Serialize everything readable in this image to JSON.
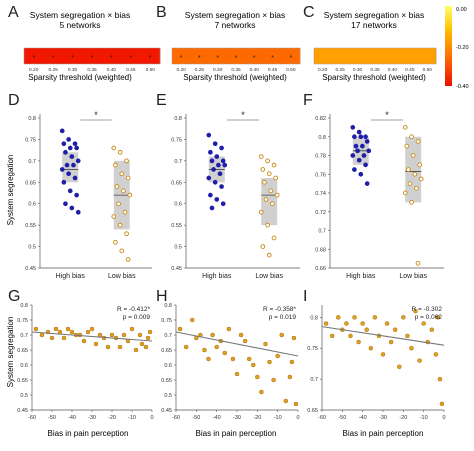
{
  "colorbar": {
    "max_label": "0.00",
    "mid_label": "-0.20",
    "min_label": "-0.40",
    "colors": [
      "#ff1a00",
      "#ff7a00",
      "#ffd200",
      "#ffff66"
    ]
  },
  "chart_data": [
    {
      "panel": "A",
      "type": "heatmap",
      "title": "System segregation × bias",
      "subtitle": "5 networks",
      "xlabel": "Sparsity threshold (weighted)",
      "x": [
        "0.20",
        "0.25",
        "0.30",
        "0.35",
        "0.40",
        "0.45",
        "0.50"
      ],
      "values": [
        -0.38,
        -0.38,
        -0.38,
        -0.38,
        -0.37,
        -0.37,
        -0.37
      ],
      "significant": [
        true,
        true,
        true,
        true,
        true,
        true,
        true
      ],
      "color": "#f21800"
    },
    {
      "panel": "B",
      "type": "heatmap",
      "title": "System segregation × bias",
      "subtitle": "7 networks",
      "xlabel": "Sparsity threshold (weighted)",
      "x": [
        "0.20",
        "0.25",
        "0.30",
        "0.35",
        "0.40",
        "0.45",
        "0.50"
      ],
      "values": [
        -0.32,
        -0.32,
        -0.32,
        -0.32,
        -0.32,
        -0.33,
        -0.34
      ],
      "significant": [
        true,
        true,
        true,
        true,
        true,
        true,
        true
      ],
      "color": "#ff6a00"
    },
    {
      "panel": "C",
      "type": "heatmap",
      "title": "System segregation × bias",
      "subtitle": "17 networks",
      "xlabel": "Sparsity threshold (weighted)",
      "x": [
        "0.20",
        "0.25",
        "0.30",
        "0.35",
        "0.40",
        "0.45",
        "0.50"
      ],
      "values": [
        -0.27,
        -0.27,
        -0.27,
        -0.27,
        -0.27,
        -0.27,
        -0.27
      ],
      "significant": [
        false,
        false,
        false,
        false,
        false,
        false,
        false
      ],
      "color": "#ffa000"
    },
    {
      "panel": "D",
      "type": "scatter",
      "ylabel": "System segregation",
      "categories": [
        "High bias",
        "Low bias"
      ],
      "ylim": [
        0.45,
        0.8
      ],
      "yticks": [
        "0.45",
        "0.5",
        "0.55",
        "0.6",
        "0.65",
        "0.7",
        "0.75",
        "0.8"
      ],
      "significance": "*",
      "box": [
        {
          "q1": 0.65,
          "median": 0.68,
          "q3": 0.72
        },
        {
          "q1": 0.54,
          "median": 0.62,
          "q3": 0.7
        }
      ],
      "series": [
        {
          "values": [
            0.77,
            0.75,
            0.74,
            0.74,
            0.73,
            0.73,
            0.72,
            0.71,
            0.7,
            0.69,
            0.69,
            0.68,
            0.67,
            0.66,
            0.65,
            0.63,
            0.62,
            0.6,
            0.59,
            0.58
          ]
        },
        {
          "values": [
            0.73,
            0.72,
            0.7,
            0.69,
            0.67,
            0.66,
            0.64,
            0.63,
            0.62,
            0.6,
            0.58,
            0.57,
            0.55,
            0.53,
            0.51,
            0.49,
            0.47
          ]
        }
      ]
    },
    {
      "panel": "E",
      "type": "scatter",
      "categories": [
        "High bias",
        "Low bias"
      ],
      "ylim": [
        0.45,
        0.8
      ],
      "yticks": [
        "0.45",
        "0.5",
        "0.55",
        "0.6",
        "0.65",
        "0.7",
        "0.75",
        "0.8"
      ],
      "significance": "*",
      "box": [
        {
          "q1": 0.65,
          "median": 0.68,
          "q3": 0.71
        },
        {
          "q1": 0.55,
          "median": 0.62,
          "q3": 0.66
        }
      ],
      "series": [
        {
          "values": [
            0.76,
            0.74,
            0.73,
            0.72,
            0.71,
            0.7,
            0.7,
            0.69,
            0.69,
            0.68,
            0.67,
            0.66,
            0.65,
            0.64,
            0.62,
            0.61,
            0.6,
            0.59
          ]
        },
        {
          "values": [
            0.71,
            0.7,
            0.69,
            0.68,
            0.67,
            0.66,
            0.65,
            0.63,
            0.62,
            0.61,
            0.6,
            0.58,
            0.55,
            0.52,
            0.5,
            0.48
          ]
        }
      ]
    },
    {
      "panel": "F",
      "type": "scatter",
      "categories": [
        "High bias",
        "Low bias"
      ],
      "ylim": [
        0.66,
        0.82
      ],
      "yticks": [
        "0.66",
        "0.68",
        "0.7",
        "0.72",
        "0.74",
        "0.76",
        "0.78",
        "0.8",
        "0.82"
      ],
      "significance": "*",
      "box": [
        {
          "q1": 0.77,
          "median": 0.785,
          "q3": 0.8
        },
        {
          "q1": 0.73,
          "median": 0.763,
          "q3": 0.8
        }
      ],
      "series": [
        {
          "values": [
            0.81,
            0.805,
            0.8,
            0.8,
            0.8,
            0.795,
            0.79,
            0.79,
            0.785,
            0.785,
            0.78,
            0.78,
            0.775,
            0.77,
            0.765,
            0.76,
            0.75
          ]
        },
        {
          "values": [
            0.81,
            0.8,
            0.795,
            0.79,
            0.78,
            0.77,
            0.765,
            0.76,
            0.755,
            0.75,
            0.745,
            0.74,
            0.73,
            0.665
          ]
        }
      ]
    },
    {
      "panel": "G",
      "type": "scatter",
      "ylabel": "System segregation",
      "xlabel": "Bias in pain perception",
      "annotation": [
        "R = -0.412*",
        "p = 0.009"
      ],
      "xlim": [
        -60,
        0
      ],
      "ylim": [
        0.45,
        0.8
      ],
      "xticks": [
        "-60",
        "-50",
        "-40",
        "-30",
        "-20",
        "-10",
        "0"
      ],
      "yticks": [
        "0.45",
        "0.5",
        "0.55",
        "0.6",
        "0.65",
        "0.7",
        "0.75",
        "0.8"
      ],
      "fit": {
        "x": [
          -60,
          0
        ],
        "y": [
          0.71,
          0.68
        ]
      },
      "points": [
        [
          -58,
          0.72
        ],
        [
          -55,
          0.7
        ],
        [
          -52,
          0.71
        ],
        [
          -50,
          0.69
        ],
        [
          -48,
          0.72
        ],
        [
          -46,
          0.71
        ],
        [
          -44,
          0.69
        ],
        [
          -42,
          0.72
        ],
        [
          -40,
          0.71
        ],
        [
          -38,
          0.7
        ],
        [
          -36,
          0.7
        ],
        [
          -34,
          0.68
        ],
        [
          -32,
          0.71
        ],
        [
          -30,
          0.72
        ],
        [
          -28,
          0.67
        ],
        [
          -26,
          0.7
        ],
        [
          -24,
          0.69
        ],
        [
          -22,
          0.66
        ],
        [
          -20,
          0.7
        ],
        [
          -18,
          0.69
        ],
        [
          -16,
          0.66
        ],
        [
          -14,
          0.7
        ],
        [
          -12,
          0.68
        ],
        [
          -10,
          0.72
        ],
        [
          -8,
          0.65
        ],
        [
          -6,
          0.7
        ],
        [
          -5,
          0.67
        ],
        [
          -3,
          0.66
        ],
        [
          -2,
          0.69
        ],
        [
          -1,
          0.71
        ]
      ]
    },
    {
      "panel": "H",
      "type": "scatter",
      "xlabel": "Bias in pain perception",
      "annotation": [
        "R = -0.358*",
        "p = 0.019"
      ],
      "xlim": [
        -60,
        0
      ],
      "ylim": [
        0.45,
        0.8
      ],
      "xticks": [
        "-60",
        "-50",
        "-40",
        "-30",
        "-20",
        "-10",
        "0"
      ],
      "yticks": [
        "0.45",
        "0.5",
        "0.55",
        "0.6",
        "0.65",
        "0.7",
        "0.75",
        "0.8"
      ],
      "fit": {
        "x": [
          -60,
          0
        ],
        "y": [
          0.71,
          0.63
        ]
      },
      "points": [
        [
          -58,
          0.72
        ],
        [
          -55,
          0.66
        ],
        [
          -52,
          0.75
        ],
        [
          -50,
          0.69
        ],
        [
          -48,
          0.7
        ],
        [
          -46,
          0.65
        ],
        [
          -44,
          0.62
        ],
        [
          -42,
          0.7
        ],
        [
          -40,
          0.66
        ],
        [
          -38,
          0.68
        ],
        [
          -36,
          0.64
        ],
        [
          -34,
          0.72
        ],
        [
          -32,
          0.62
        ],
        [
          -30,
          0.57
        ],
        [
          -28,
          0.7
        ],
        [
          -26,
          0.68
        ],
        [
          -24,
          0.62
        ],
        [
          -22,
          0.6
        ],
        [
          -20,
          0.56
        ],
        [
          -18,
          0.51
        ],
        [
          -16,
          0.67
        ],
        [
          -14,
          0.61
        ],
        [
          -12,
          0.55
        ],
        [
          -10,
          0.63
        ],
        [
          -8,
          0.7
        ],
        [
          -6,
          0.48
        ],
        [
          -4,
          0.56
        ],
        [
          -3,
          0.61
        ],
        [
          -2,
          0.69
        ],
        [
          -1,
          0.47
        ]
      ]
    },
    {
      "panel": "I",
      "type": "scatter",
      "xlabel": "Bias in pain perception",
      "annotation": [
        "R = -0.302",
        "p = 0.062"
      ],
      "xlim": [
        -60,
        0
      ],
      "ylim": [
        0.65,
        0.82
      ],
      "xticks": [
        "-60",
        "-50",
        "-40",
        "-30",
        "-20",
        "-10",
        "0"
      ],
      "yticks": [
        "0.65",
        "0.7",
        "0.75",
        "0.8"
      ],
      "fit": {
        "x": [
          -60,
          0
        ],
        "y": [
          0.785,
          0.755
        ]
      },
      "points": [
        [
          -58,
          0.79
        ],
        [
          -55,
          0.77
        ],
        [
          -52,
          0.8
        ],
        [
          -50,
          0.78
        ],
        [
          -48,
          0.79
        ],
        [
          -46,
          0.77
        ],
        [
          -44,
          0.8
        ],
        [
          -42,
          0.76
        ],
        [
          -40,
          0.79
        ],
        [
          -38,
          0.78
        ],
        [
          -36,
          0.75
        ],
        [
          -34,
          0.8
        ],
        [
          -32,
          0.77
        ],
        [
          -30,
          0.74
        ],
        [
          -28,
          0.79
        ],
        [
          -26,
          0.76
        ],
        [
          -24,
          0.78
        ],
        [
          -22,
          0.72
        ],
        [
          -20,
          0.8
        ],
        [
          -18,
          0.77
        ],
        [
          -16,
          0.75
        ],
        [
          -14,
          0.81
        ],
        [
          -12,
          0.73
        ],
        [
          -10,
          0.79
        ],
        [
          -8,
          0.76
        ],
        [
          -6,
          0.78
        ],
        [
          -4,
          0.74
        ],
        [
          -3,
          0.8
        ],
        [
          -2,
          0.7
        ],
        [
          -1,
          0.66
        ]
      ]
    }
  ]
}
